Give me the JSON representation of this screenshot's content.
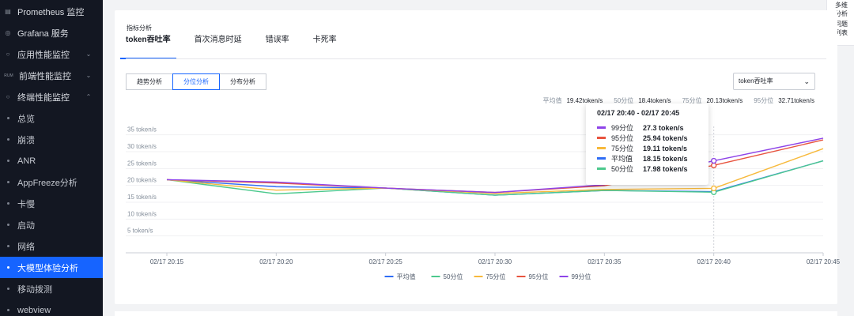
{
  "sidebar": {
    "items": [
      {
        "label": "Prometheus 监控",
        "icon": "database-icon",
        "kind": "top"
      },
      {
        "label": "Grafana 服务",
        "icon": "grafana-icon",
        "kind": "top"
      },
      {
        "label": "应用性能监控",
        "icon": "apm-icon",
        "kind": "top",
        "chevron": "down"
      },
      {
        "label": "前端性能监控",
        "icon": "rum-icon",
        "icon_text": "RUM",
        "kind": "top",
        "chevron": "down"
      },
      {
        "label": "终端性能监控",
        "icon": "terminal-icon",
        "kind": "top",
        "chevron": "up"
      },
      {
        "label": "总览",
        "kind": "sub"
      },
      {
        "label": "崩溃",
        "kind": "sub"
      },
      {
        "label": "ANR",
        "kind": "sub"
      },
      {
        "label": "AppFreeze分析",
        "kind": "sub"
      },
      {
        "label": "卡慢",
        "kind": "sub"
      },
      {
        "label": "启动",
        "kind": "sub"
      },
      {
        "label": "网络",
        "kind": "sub"
      },
      {
        "label": "大模型体验分析",
        "kind": "sub",
        "active": true
      },
      {
        "label": "移动拨测",
        "kind": "sub"
      },
      {
        "label": "webview",
        "kind": "sub"
      }
    ]
  },
  "float_panel": {
    "line1": "多维分析",
    "line2": "问题列表"
  },
  "section_title": "指标分析",
  "tabs": [
    {
      "label": "token吞吐率",
      "active": true
    },
    {
      "label": "首次消息时延"
    },
    {
      "label": "错误率"
    },
    {
      "label": "卡死率"
    }
  ],
  "segments": [
    {
      "label": "趋势分析"
    },
    {
      "label": "分位分析",
      "active": true
    },
    {
      "label": "分布分析"
    }
  ],
  "metric_select": {
    "value": "token吞吐率"
  },
  "stats": [
    {
      "label": "平均值",
      "value": "19.42token/s"
    },
    {
      "label": "50分位",
      "value": "18.4token/s"
    },
    {
      "label": "75分位",
      "value": "20.13token/s"
    },
    {
      "label": "95分位",
      "value": "32.71token/s"
    }
  ],
  "tooltip": {
    "title": "02/17 20:40 - 02/17 20:45",
    "rows": [
      {
        "name": "99分位",
        "value": "27.3 token/s",
        "color": "#8e44e8"
      },
      {
        "name": "95分位",
        "value": "25.94 token/s",
        "color": "#e8543f"
      },
      {
        "name": "75分位",
        "value": "19.11 token/s",
        "color": "#f7b93b"
      },
      {
        "name": "平均值",
        "value": "18.15 token/s",
        "color": "#2f6df5"
      },
      {
        "name": "50分位",
        "value": "17.98 token/s",
        "color": "#4cc98d"
      }
    ]
  },
  "chart_data": {
    "type": "line",
    "x": [
      "02/17 20:15",
      "02/17 20:20",
      "02/17 20:25",
      "02/17 20:30",
      "02/17 20:35",
      "02/17 20:40",
      "02/17 20:45"
    ],
    "y_ticks": [
      "5 token/s",
      "10 token/s",
      "15 token/s",
      "20 token/s",
      "25 token/s",
      "30 token/s",
      "35 token/s"
    ],
    "ylim": [
      0,
      37.5
    ],
    "series": [
      {
        "name": "平均值",
        "color": "#2f6df5",
        "values": [
          21.7,
          19.6,
          19.2,
          17.1,
          18.5,
          18.15,
          27.3
        ]
      },
      {
        "name": "50分位",
        "color": "#4cc98d",
        "values": [
          21.7,
          17.5,
          19.2,
          17.1,
          18.5,
          17.98,
          27.3
        ]
      },
      {
        "name": "75分位",
        "color": "#f7b93b",
        "values": [
          21.7,
          18.6,
          19.2,
          17.6,
          18.8,
          19.11,
          30.9
        ]
      },
      {
        "name": "95分位",
        "color": "#e8543f",
        "values": [
          21.7,
          20.7,
          19.2,
          17.9,
          19.9,
          25.94,
          33.5
        ]
      },
      {
        "name": "99分位",
        "color": "#8e44e8",
        "values": [
          21.7,
          21.0,
          19.2,
          17.9,
          20.2,
          27.3,
          34.0
        ]
      }
    ],
    "highlight_index": 5,
    "legend_position": "bottom-center",
    "grid": true
  }
}
